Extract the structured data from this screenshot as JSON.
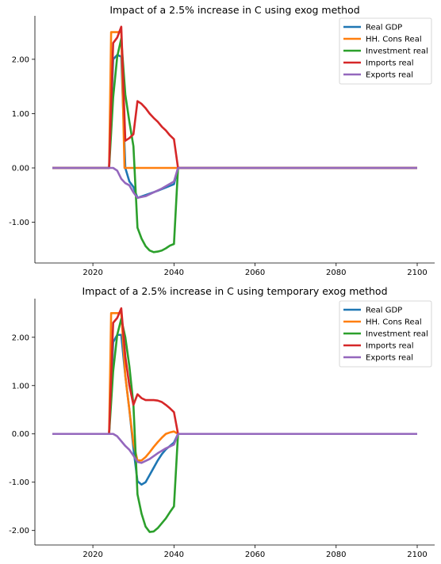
{
  "colors": {
    "Real GDP": "#1f77b4",
    "HH. Cons Real": "#ff7f0e",
    "Investment real": "#2ca02c",
    "Imports real": "#d62728",
    "Exports real": "#9467bd"
  },
  "chart_data": [
    {
      "type": "line",
      "title": "Impact of a 2.5% increase in C using exog method",
      "xlabel": "",
      "ylabel": "",
      "xlim": [
        2010,
        2100
      ],
      "ylim": [
        -1.75,
        2.8
      ],
      "xticks": [
        2020,
        2040,
        2060,
        2080,
        2100
      ],
      "xtick_labels": [
        "2020",
        "2040",
        "2060",
        "2080",
        "2100"
      ],
      "yticks": [
        -1,
        0,
        1,
        2
      ],
      "ytick_labels": [
        "-1.00",
        "0.00",
        "1.00",
        "2.00"
      ],
      "grid": false,
      "legend": "top-right",
      "series": [
        {
          "name": "Real GDP",
          "points": [
            [
              2010,
              0
            ],
            [
              2024,
              0
            ],
            [
              2025,
              2.0
            ],
            [
              2026,
              2.08
            ],
            [
              2027,
              2.05
            ],
            [
              2028,
              0.0
            ],
            [
              2029,
              -0.25
            ],
            [
              2030,
              -0.35
            ],
            [
              2031,
              -0.55
            ],
            [
              2033,
              -0.5
            ],
            [
              2036,
              -0.42
            ],
            [
              2040,
              -0.3
            ],
            [
              2041,
              0
            ],
            [
              2100,
              0
            ]
          ]
        },
        {
          "name": "HH. Cons Real",
          "points": [
            [
              2010,
              0
            ],
            [
              2024,
              0
            ],
            [
              2024.5,
              2.5
            ],
            [
              2027,
              2.5
            ],
            [
              2027.8,
              0
            ],
            [
              2100,
              0
            ]
          ]
        },
        {
          "name": "Investment real",
          "points": [
            [
              2010,
              0
            ],
            [
              2024,
              0
            ],
            [
              2025,
              1.3
            ],
            [
              2026,
              2.05
            ],
            [
              2027,
              2.38
            ],
            [
              2028,
              1.35
            ],
            [
              2029,
              0.85
            ],
            [
              2030,
              0.4
            ],
            [
              2031,
              -1.1
            ],
            [
              2032,
              -1.3
            ],
            [
              2033,
              -1.44
            ],
            [
              2034,
              -1.52
            ],
            [
              2035,
              -1.55
            ],
            [
              2036,
              -1.54
            ],
            [
              2037,
              -1.52
            ],
            [
              2038,
              -1.48
            ],
            [
              2039,
              -1.43
            ],
            [
              2040,
              -1.4
            ],
            [
              2041,
              0
            ],
            [
              2100,
              0
            ]
          ]
        },
        {
          "name": "Imports real",
          "points": [
            [
              2010,
              0
            ],
            [
              2024,
              0
            ],
            [
              2025,
              2.3
            ],
            [
              2026,
              2.4
            ],
            [
              2027,
              2.6
            ],
            [
              2028,
              0.5
            ],
            [
              2029,
              0.55
            ],
            [
              2030,
              0.62
            ],
            [
              2031,
              1.23
            ],
            [
              2032,
              1.18
            ],
            [
              2033,
              1.1
            ],
            [
              2034,
              1.0
            ],
            [
              2035,
              0.92
            ],
            [
              2036,
              0.85
            ],
            [
              2037,
              0.76
            ],
            [
              2038,
              0.69
            ],
            [
              2039,
              0.6
            ],
            [
              2040,
              0.53
            ],
            [
              2041,
              0
            ],
            [
              2100,
              0
            ]
          ]
        },
        {
          "name": "Exports real",
          "points": [
            [
              2010,
              0
            ],
            [
              2025,
              0
            ],
            [
              2026,
              -0.05
            ],
            [
              2027,
              -0.2
            ],
            [
              2028,
              -0.28
            ],
            [
              2029,
              -0.32
            ],
            [
              2030,
              -0.45
            ],
            [
              2031,
              -0.55
            ],
            [
              2033,
              -0.52
            ],
            [
              2035,
              -0.45
            ],
            [
              2037,
              -0.38
            ],
            [
              2040,
              -0.25
            ],
            [
              2041,
              0
            ],
            [
              2100,
              0
            ]
          ]
        }
      ]
    },
    {
      "type": "line",
      "title": "Impact of a 2.5% increase in C using temporary exog method",
      "xlabel": "",
      "ylabel": "",
      "xlim": [
        2010,
        2100
      ],
      "ylim": [
        -2.3,
        2.8
      ],
      "xticks": [
        2020,
        2040,
        2060,
        2080,
        2100
      ],
      "xtick_labels": [
        "2020",
        "2040",
        "2060",
        "2080",
        "2100"
      ],
      "yticks": [
        -2,
        -1,
        0,
        1,
        2
      ],
      "ytick_labels": [
        "-2.00",
        "-1.00",
        "0.00",
        "1.00",
        "2.00"
      ],
      "grid": false,
      "legend": "top-right",
      "series": [
        {
          "name": "Real GDP",
          "points": [
            [
              2010,
              0
            ],
            [
              2024,
              0
            ],
            [
              2025,
              1.9
            ],
            [
              2026,
              2.05
            ],
            [
              2027,
              2.05
            ],
            [
              2028,
              1.2
            ],
            [
              2029,
              0.5
            ],
            [
              2030,
              -0.3
            ],
            [
              2031,
              -0.98
            ],
            [
              2032,
              -1.05
            ],
            [
              2033,
              -1.0
            ],
            [
              2034,
              -0.85
            ],
            [
              2035,
              -0.7
            ],
            [
              2036,
              -0.55
            ],
            [
              2037,
              -0.42
            ],
            [
              2038,
              -0.32
            ],
            [
              2039,
              -0.25
            ],
            [
              2040,
              -0.18
            ],
            [
              2041,
              0
            ],
            [
              2100,
              0
            ]
          ]
        },
        {
          "name": "HH. Cons Real",
          "points": [
            [
              2010,
              0
            ],
            [
              2024,
              0
            ],
            [
              2024.5,
              2.5
            ],
            [
              2027,
              2.5
            ],
            [
              2028,
              1.2
            ],
            [
              2029,
              0.5
            ],
            [
              2030,
              -0.2
            ],
            [
              2031,
              -0.55
            ],
            [
              2032,
              -0.55
            ],
            [
              2033,
              -0.48
            ],
            [
              2034,
              -0.38
            ],
            [
              2035,
              -0.27
            ],
            [
              2036,
              -0.17
            ],
            [
              2037,
              -0.08
            ],
            [
              2038,
              0
            ],
            [
              2039,
              0.03
            ],
            [
              2040,
              0.05
            ],
            [
              2041,
              0
            ],
            [
              2100,
              0
            ]
          ]
        },
        {
          "name": "Investment real",
          "points": [
            [
              2010,
              0
            ],
            [
              2024,
              0
            ],
            [
              2025,
              1.3
            ],
            [
              2026,
              2.05
            ],
            [
              2027,
              2.38
            ],
            [
              2028,
              2.0
            ],
            [
              2029,
              1.4
            ],
            [
              2030,
              0.6
            ],
            [
              2031,
              -1.25
            ],
            [
              2032,
              -1.65
            ],
            [
              2033,
              -1.92
            ],
            [
              2034,
              -2.03
            ],
            [
              2035,
              -2.02
            ],
            [
              2036,
              -1.95
            ],
            [
              2037,
              -1.85
            ],
            [
              2038,
              -1.75
            ],
            [
              2039,
              -1.62
            ],
            [
              2040,
              -1.5
            ],
            [
              2041,
              0
            ],
            [
              2100,
              0
            ]
          ]
        },
        {
          "name": "Imports real",
          "points": [
            [
              2010,
              0
            ],
            [
              2024,
              0
            ],
            [
              2025,
              2.3
            ],
            [
              2026,
              2.4
            ],
            [
              2027,
              2.6
            ],
            [
              2028,
              1.6
            ],
            [
              2029,
              1.0
            ],
            [
              2030,
              0.6
            ],
            [
              2031,
              0.82
            ],
            [
              2032,
              0.74
            ],
            [
              2033,
              0.7
            ],
            [
              2034,
              0.7
            ],
            [
              2035,
              0.7
            ],
            [
              2036,
              0.69
            ],
            [
              2037,
              0.66
            ],
            [
              2038,
              0.6
            ],
            [
              2039,
              0.53
            ],
            [
              2040,
              0.45
            ],
            [
              2041,
              0
            ],
            [
              2100,
              0
            ]
          ]
        },
        {
          "name": "Exports real",
          "points": [
            [
              2010,
              0
            ],
            [
              2025,
              0
            ],
            [
              2026,
              -0.05
            ],
            [
              2027,
              -0.15
            ],
            [
              2028,
              -0.25
            ],
            [
              2029,
              -0.33
            ],
            [
              2030,
              -0.45
            ],
            [
              2031,
              -0.58
            ],
            [
              2032,
              -0.6
            ],
            [
              2034,
              -0.52
            ],
            [
              2036,
              -0.4
            ],
            [
              2038,
              -0.3
            ],
            [
              2040,
              -0.22
            ],
            [
              2041,
              0
            ],
            [
              2100,
              0
            ]
          ]
        }
      ]
    }
  ]
}
